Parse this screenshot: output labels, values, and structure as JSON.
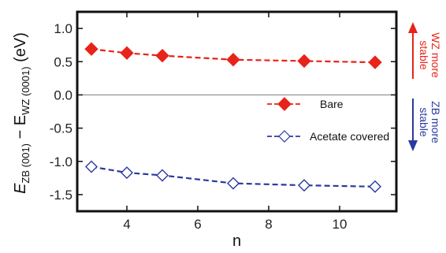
{
  "chart_data": {
    "type": "line",
    "title": "",
    "xlabel": "n",
    "ylabel": {
      "main": "E",
      "sub1": "ZB (001)",
      "mid": " − E",
      "sub2": "WZ (0001)",
      "unit": " (eV)"
    },
    "xlim": [
      2.6,
      11.6
    ],
    "ylim": [
      -1.75,
      1.25
    ],
    "xticks": [
      4,
      6,
      8,
      10
    ],
    "yticks": [
      1.0,
      0.5,
      0.0,
      -0.5,
      -1.0,
      -1.5
    ],
    "ytick_labels": [
      "1.0",
      "0.5",
      "0.0",
      "-0.5",
      "-1.0",
      "-1.5"
    ],
    "reference_line_y": 0.0,
    "series": [
      {
        "name": "Bare",
        "color": "#e8231a",
        "marker": "filled-diamond",
        "x": [
          3,
          4,
          5,
          7,
          9,
          11
        ],
        "y": [
          0.69,
          0.63,
          0.59,
          0.53,
          0.51,
          0.49
        ]
      },
      {
        "name": "Acetate covered",
        "color": "#2a3aa0",
        "marker": "open-diamond",
        "x": [
          3,
          4,
          5,
          7,
          9,
          11
        ],
        "y": [
          -1.08,
          -1.17,
          -1.21,
          -1.33,
          -1.36,
          -1.38
        ]
      }
    ],
    "legend_position": "middle-right",
    "annotations": {
      "wz_more_stable": {
        "line1": "WZ more",
        "line2": "stable",
        "color": "#e8231a"
      },
      "zb_more_stable": {
        "line1": "ZB more",
        "line2": "stable",
        "color": "#2a3aa0"
      }
    }
  }
}
